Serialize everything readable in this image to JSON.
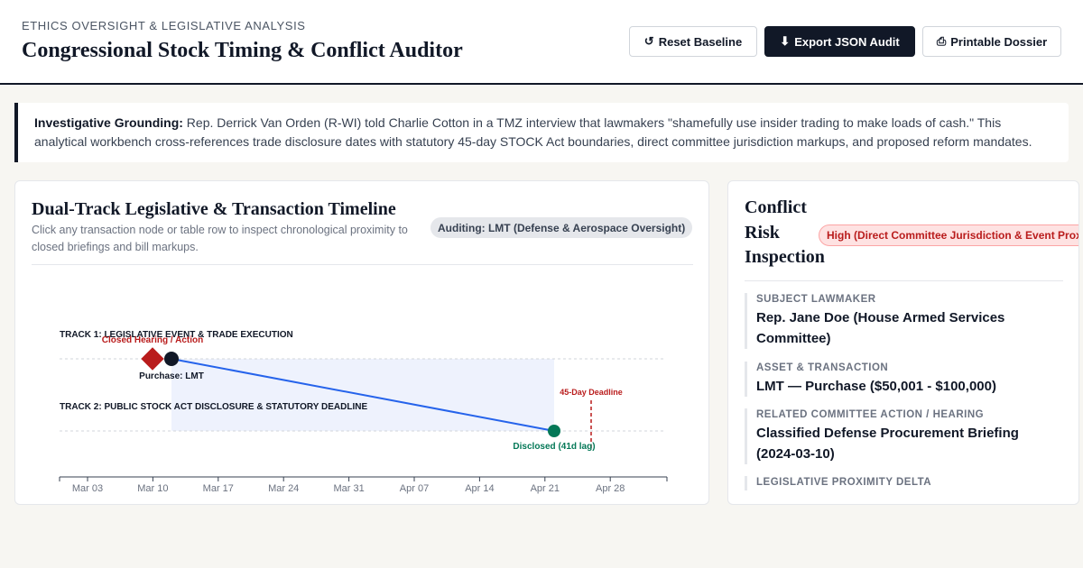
{
  "header": {
    "kicker": "ETHICS OVERSIGHT & LEGISLATIVE ANALYSIS",
    "title": "Congressional Stock Timing & Conflict Auditor",
    "buttons": {
      "reset": "Reset Baseline",
      "export": "Export JSON Audit",
      "print": "Printable Dossier"
    }
  },
  "grounding": {
    "label": "Investigative Grounding:",
    "text": "Rep. Derrick Van Orden (R-WI) told Charlie Cotton in a TMZ interview that lawmakers \"shamefully use insider trading to make loads of cash.\" This analytical workbench cross-references trade disclosure dates with statutory 45-day STOCK Act boundaries, direct committee jurisdiction markups, and proposed reform mandates."
  },
  "timeline": {
    "title": "Dual-Track Legislative & Transaction Timeline",
    "subtitle": "Click any transaction node or table row to inspect chronological proximity to closed briefings and bill markups.",
    "auditing_badge": "Auditing: LMT (Defense & Aerospace Oversight)",
    "track1_label": "TRACK 1: LEGISLATIVE EVENT & TRADE EXECUTION",
    "track2_label": "TRACK 2: PUBLIC STOCK ACT DISCLOSURE & STATUTORY DEADLINE",
    "hearing_label": "Closed Hearing / Action",
    "purchase_label": "Purchase: LMT",
    "deadline_label": "45-Day Deadline",
    "disclosed_label": "Disclosed (41d lag)",
    "axis_ticks": [
      "Mar 03",
      "Mar 10",
      "Mar 17",
      "Mar 24",
      "Mar 31",
      "Apr 07",
      "Apr 14",
      "Apr 21",
      "Apr 28"
    ]
  },
  "chart_data": {
    "type": "timeline",
    "x_axis_ticks": [
      "Mar 03",
      "Mar 10",
      "Mar 17",
      "Mar 24",
      "Mar 31",
      "Apr 07",
      "Apr 14",
      "Apr 21",
      "Apr 28"
    ],
    "events": [
      {
        "label": "Closed Hearing / Action",
        "date": "2024-03-10",
        "track": 1,
        "marker": "diamond"
      },
      {
        "label": "Purchase: LMT",
        "date": "2024-03-12",
        "track": 1,
        "marker": "circle"
      },
      {
        "label": "Disclosed (41d lag)",
        "date": "2024-04-22",
        "track": 2,
        "marker": "circle"
      },
      {
        "label": "45-Day Deadline",
        "date": "2024-04-26",
        "track": 2,
        "marker": "dashed-line"
      }
    ]
  },
  "inspection": {
    "title": "Conflict Risk Inspection",
    "risk_badge": "High (Direct Committee Jurisdiction & Event Proximity)",
    "fields": [
      {
        "label": "SUBJECT LAWMAKER",
        "value": "Rep. Jane Doe (House Armed Services Committee)"
      },
      {
        "label": "ASSET & TRANSACTION",
        "value": "LMT — Purchase ($50,001 - $100,000)"
      },
      {
        "label": "RELATED COMMITTEE ACTION / HEARING",
        "value": "Classified Defense Procurement Briefing (2024-03-10)"
      },
      {
        "label": "LEGISLATIVE PROXIMITY DELTA",
        "value": ""
      }
    ]
  },
  "colors": {
    "ink": "#111827",
    "hearing": "#b91c1c",
    "disclosure": "#047857",
    "link_line": "#2563eb",
    "lag_shade": "#eef2fd"
  },
  "icons": {
    "reset": "reset-icon",
    "export": "download-icon",
    "print": "print-icon"
  }
}
